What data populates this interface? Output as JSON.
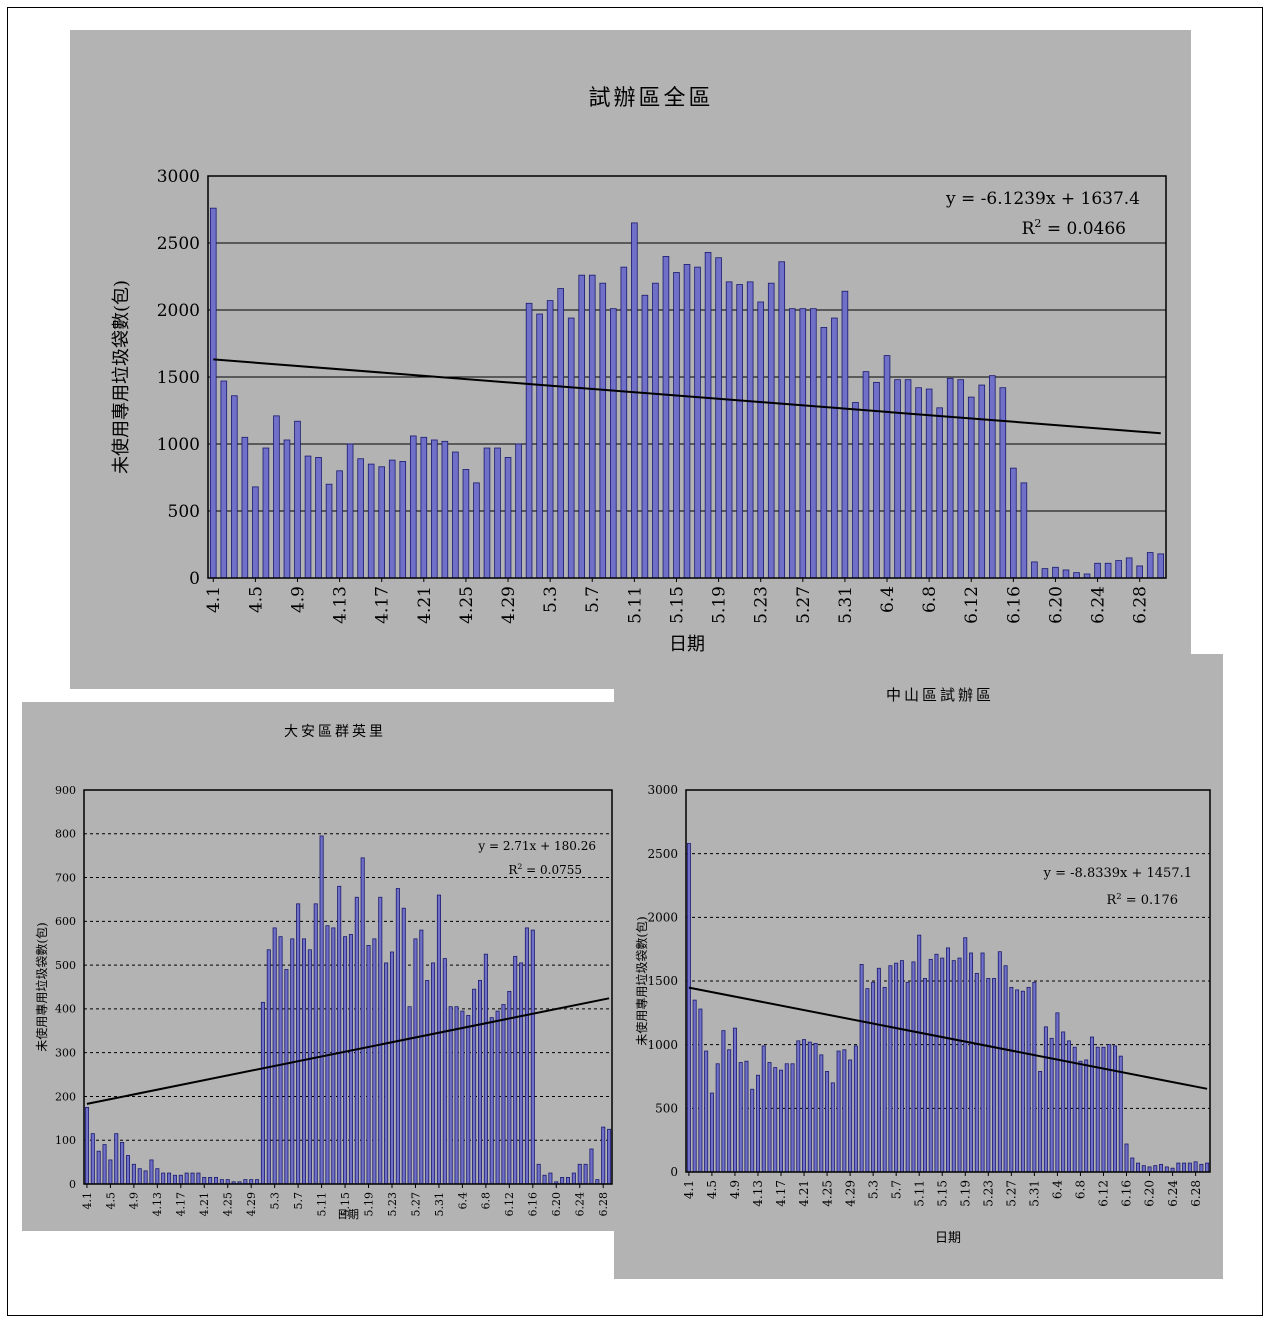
{
  "chart_data": [
    {
      "type": "bar",
      "title": "試辦區全區",
      "xlabel": "日期",
      "ylabel": "未使用專用垃圾袋數(包)",
      "ylim": [
        0,
        3000
      ],
      "yticks": [
        0,
        500,
        1000,
        1500,
        2000,
        2500,
        3000
      ],
      "grid": "solid",
      "bar_color": "#7070c8",
      "trendline": {
        "slope": -6.1239,
        "intercept": 1637.4
      },
      "equation": "y = -6.1239x + 1637.4",
      "r2_label": "R",
      "r2_value": " = 0.0466",
      "xtick_labels": [
        "4.1",
        "4.5",
        "4.9",
        "4.13",
        "4.17",
        "4.21",
        "4.25",
        "4.29",
        "5.3",
        "5.7",
        "5.11",
        "5.15",
        "5.19",
        "5.23",
        "5.27",
        "5.31",
        "6.4",
        "6.8",
        "6.12",
        "6.16",
        "6.20",
        "6.24",
        "6.28"
      ],
      "values": [
        2760,
        1470,
        1360,
        1050,
        680,
        970,
        1210,
        1030,
        1170,
        910,
        900,
        700,
        800,
        1000,
        890,
        850,
        830,
        880,
        870,
        1060,
        1050,
        1030,
        1020,
        940,
        810,
        710,
        970,
        970,
        900,
        1000,
        2050,
        1970,
        2070,
        2160,
        1940,
        2260,
        2260,
        2200,
        2010,
        2320,
        2650,
        2110,
        2200,
        2400,
        2280,
        2340,
        2320,
        2430,
        2390,
        2210,
        2190,
        2210,
        2060,
        2200,
        2360,
        2010,
        2010,
        2010,
        1870,
        1940,
        2140,
        1310,
        1540,
        1460,
        1660,
        1480,
        1480,
        1420,
        1410,
        1270,
        1490,
        1480,
        1350,
        1440,
        1510,
        1420,
        820,
        710,
        120,
        70,
        80,
        60,
        40,
        30,
        110,
        110,
        130,
        150,
        90,
        190,
        180
      ]
    },
    {
      "type": "bar",
      "title": "大安區群英里",
      "xlabel": "日期",
      "ylabel": "未使用專用垃圾袋數(包)",
      "ylim": [
        0,
        900
      ],
      "yticks": [
        0,
        100,
        200,
        300,
        400,
        500,
        600,
        700,
        800,
        900
      ],
      "grid": "dashed",
      "bar_color": "#7070c8",
      "trendline": {
        "slope": 2.71,
        "intercept": 180.26
      },
      "equation": "y = 2.71x + 180.26",
      "r2_label": "R",
      "r2_value": " = 0.0755",
      "xtick_labels": [
        "4.1",
        "4.5",
        "4.9",
        "4.13",
        "4.17",
        "4.21",
        "4.25",
        "4.29",
        "5.3",
        "5.7",
        "5.11",
        "5.15",
        "5.19",
        "5.23",
        "5.27",
        "5.31",
        "6.4",
        "6.8",
        "6.12",
        "6.16",
        "6.20",
        "6.24",
        "6.28"
      ],
      "values": [
        175,
        115,
        75,
        90,
        55,
        115,
        95,
        65,
        45,
        35,
        30,
        55,
        35,
        25,
        25,
        20,
        20,
        25,
        25,
        25,
        15,
        15,
        15,
        10,
        10,
        5,
        5,
        10,
        10,
        10,
        415,
        535,
        585,
        565,
        490,
        560,
        640,
        560,
        535,
        640,
        795,
        590,
        585,
        680,
        565,
        570,
        655,
        745,
        545,
        560,
        655,
        505,
        530,
        675,
        630,
        405,
        560,
        580,
        465,
        505,
        660,
        515,
        405,
        405,
        395,
        385,
        445,
        465,
        525,
        380,
        395,
        410,
        440,
        520,
        505,
        585,
        580,
        45,
        20,
        25,
        5,
        15,
        15,
        25,
        45,
        45,
        80,
        10,
        130,
        125
      ]
    },
    {
      "type": "bar",
      "title": "中山區試辦區",
      "xlabel": "日期",
      "ylabel": "未使用專用垃圾袋數(包)",
      "ylim": [
        0,
        3000
      ],
      "yticks": [
        0,
        500,
        1000,
        1500,
        2000,
        2500,
        3000
      ],
      "grid": "dashed",
      "bar_color": "#7070c8",
      "trendline": {
        "slope": -8.8339,
        "intercept": 1457.1
      },
      "equation": "y = -8.8339x + 1457.1",
      "r2_label": "R",
      "r2_value": " = 0.176",
      "xtick_labels": [
        "4.1",
        "4.5",
        "4.9",
        "4.13",
        "4.17",
        "4.21",
        "4.25",
        "4.29",
        "5.3",
        "5.7",
        "5.11",
        "5.15",
        "5.19",
        "5.23",
        "5.27",
        "5.31",
        "6.4",
        "6.8",
        "6.12",
        "6.16",
        "6.20",
        "6.24",
        "6.28"
      ],
      "values": [
        2580,
        1350,
        1280,
        950,
        620,
        850,
        1110,
        960,
        1130,
        860,
        870,
        650,
        760,
        990,
        860,
        820,
        800,
        850,
        850,
        1030,
        1040,
        1020,
        1010,
        920,
        790,
        700,
        950,
        960,
        880,
        990,
        1630,
        1440,
        1490,
        1600,
        1450,
        1620,
        1640,
        1660,
        1490,
        1650,
        1860,
        1520,
        1670,
        1710,
        1680,
        1760,
        1660,
        1680,
        1840,
        1720,
        1560,
        1720,
        1520,
        1520,
        1730,
        1620,
        1450,
        1430,
        1420,
        1450,
        1490,
        790,
        1140,
        1050,
        1250,
        1100,
        1030,
        980,
        870,
        880,
        1060,
        980,
        980,
        1000,
        990,
        910,
        220,
        110,
        70,
        50,
        40,
        50,
        60,
        40,
        30,
        70,
        70,
        70,
        80,
        60,
        70
      ]
    }
  ]
}
